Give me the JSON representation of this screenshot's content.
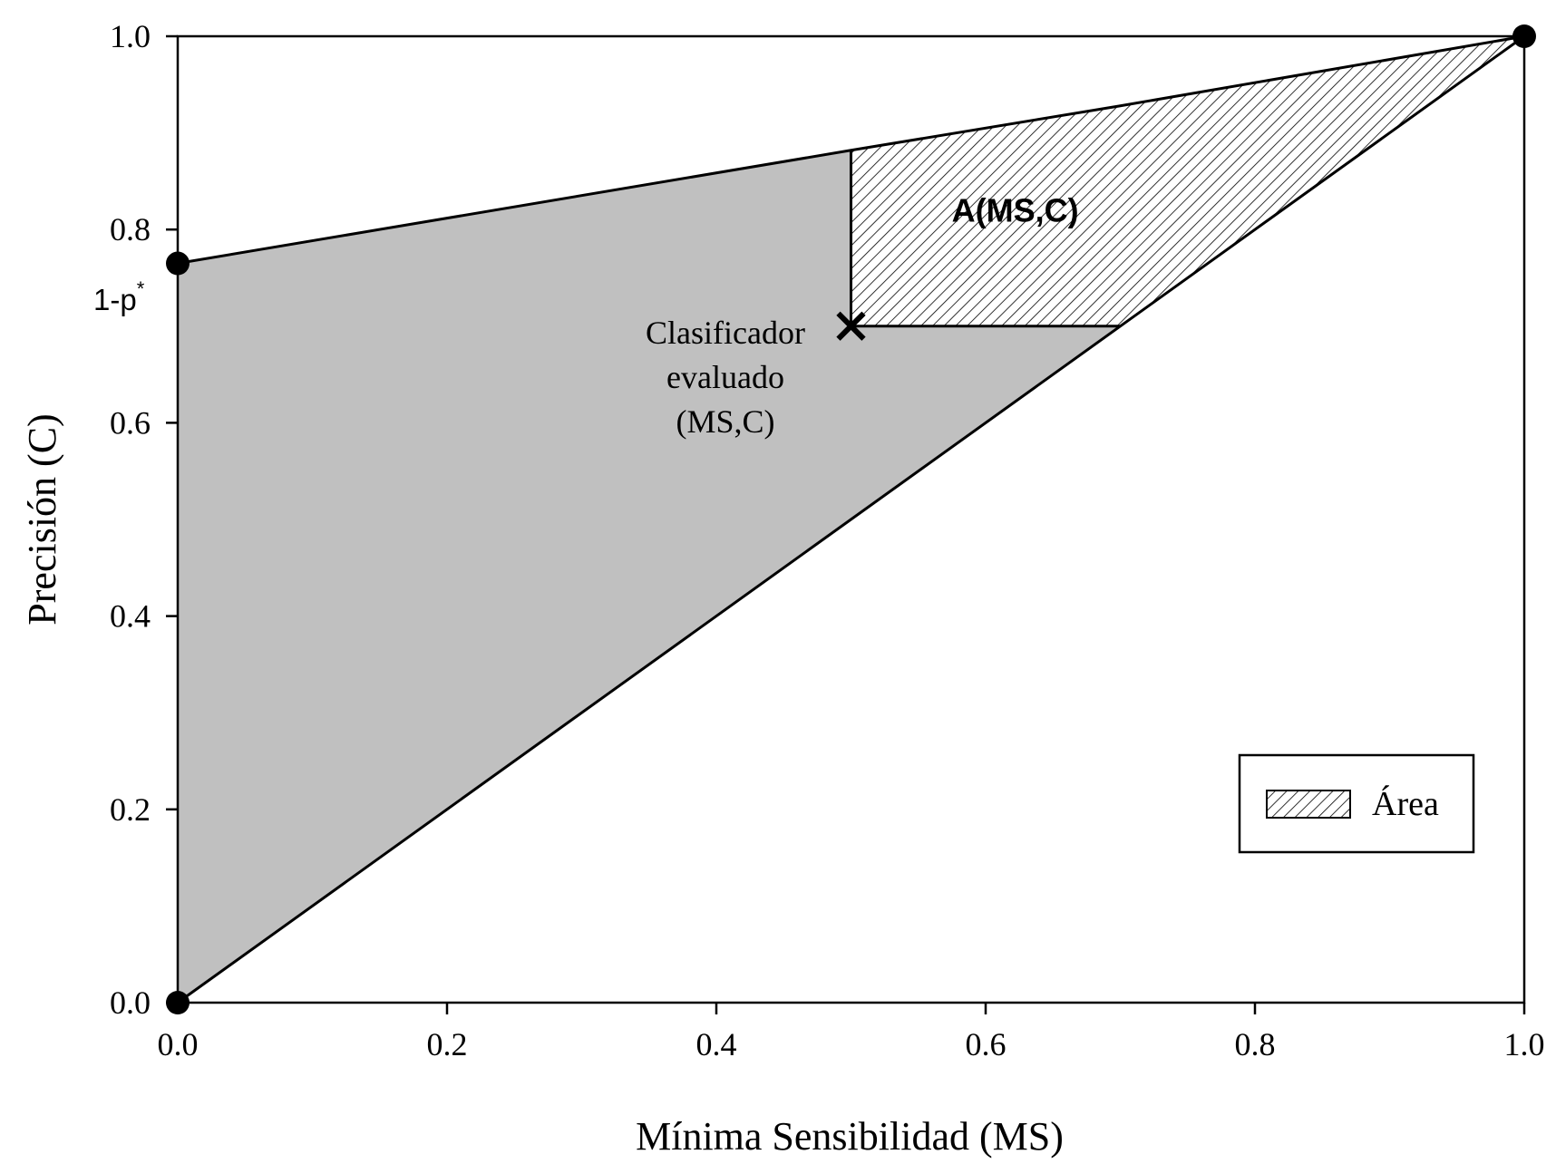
{
  "chart_data": {
    "type": "area",
    "xlabel": "Mínima Sensibilidad (MS)",
    "ylabel": "Precisión (C)",
    "xlim": [
      0.0,
      1.0
    ],
    "ylim": [
      0.0,
      1.0
    ],
    "x_ticks": [
      "0.0",
      "0.2",
      "0.4",
      "0.6",
      "0.8",
      "1.0"
    ],
    "y_ticks": [
      "0.0",
      "0.2",
      "0.4",
      "0.6",
      "0.8",
      "1.0"
    ],
    "grid": false,
    "legend_position": "bottom-right",
    "upper_curve": [
      {
        "x": 0.0,
        "y": 0.765
      },
      {
        "x": 0.5,
        "y": 0.882
      },
      {
        "x": 0.7,
        "y": 0.928
      },
      {
        "x": 1.0,
        "y": 1.0
      }
    ],
    "diagonal": [
      {
        "x": 0.0,
        "y": 0.0
      },
      {
        "x": 1.0,
        "y": 1.0
      }
    ],
    "key_points": [
      {
        "x": 0.0,
        "y": 0.0
      },
      {
        "x": 0.0,
        "y": 0.765
      },
      {
        "x": 1.0,
        "y": 1.0
      }
    ],
    "evaluated_classifier": {
      "x": 0.5,
      "y": 0.7
    },
    "area_region": {
      "label": "A(MS,C)",
      "x_from": 0.5,
      "lower_y": 0.7
    },
    "annotations": {
      "one_minus_p": "1-p",
      "one_minus_p_sup": "*",
      "classifier_lines": [
        "Clasificador",
        "evaluado",
        "(MS,C)"
      ],
      "area_label": "A(MS,C)"
    },
    "legend": {
      "label": "Área"
    },
    "colors": {
      "gray_fill": "#c0c0c0",
      "hatch": "#000000",
      "line": "#000000",
      "background": "#ffffff"
    }
  }
}
